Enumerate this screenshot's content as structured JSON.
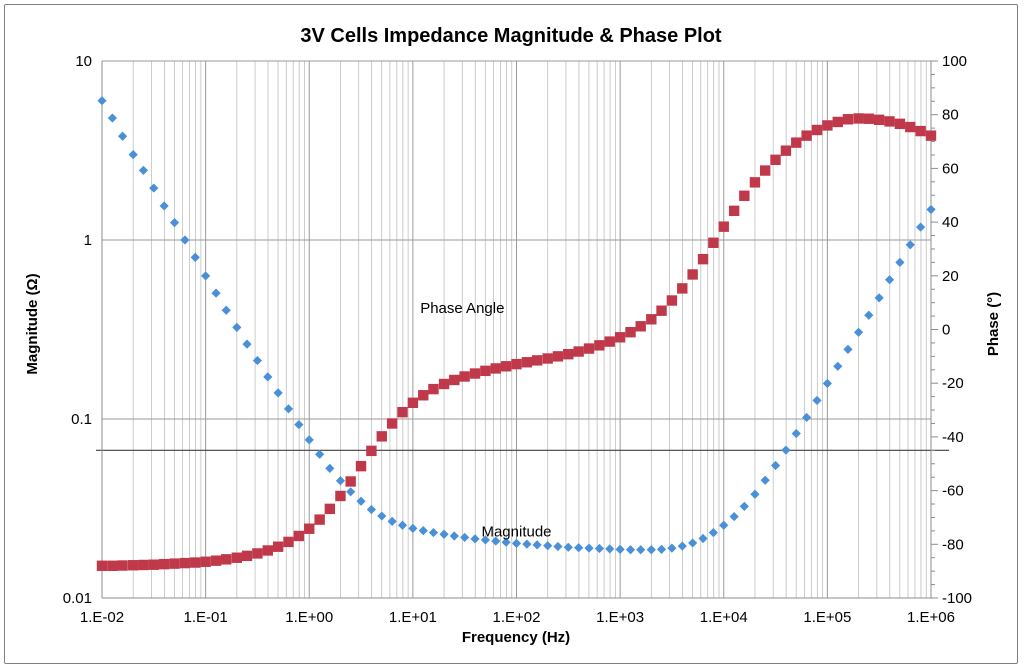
{
  "chart_data": {
    "type": "scatter",
    "title": "3V Cells Impedance Magnitude & Phase Plot",
    "xlabel": "Frequency (Hz)",
    "ylabel": "Magnitude (Ω)",
    "y2label": "Phase (°)",
    "x_scale": "log",
    "y_scale": "log",
    "xlim": [
      0.01,
      1000000
    ],
    "ylim": [
      0.01,
      10
    ],
    "y2lim": [
      -100,
      100
    ],
    "x_tick_labels": [
      "1.E-02",
      "1.E-01",
      "1.E+00",
      "1.E+01",
      "1.E+02",
      "1.E+03",
      "1.E+04",
      "1.E+05",
      "1.E+06"
    ],
    "y_tick_labels": [
      "0.01",
      "0.1",
      "1",
      "10"
    ],
    "y2_tick_labels": [
      "-100",
      "-80",
      "-60",
      "-40",
      "-20",
      "0",
      "20",
      "40",
      "60",
      "80",
      "100"
    ],
    "grid": true,
    "reference_line": {
      "axis": "y2",
      "value": -45
    },
    "annotations": [
      {
        "text": "Phase Angle",
        "series": "phase",
        "x": 30,
        "y2": 8
      },
      {
        "text": "Magnitude",
        "series": "magnitude",
        "x": 100,
        "y": 0.0235
      }
    ],
    "colors": {
      "magnitude": "#4a90d9",
      "phase": "#c0394b",
      "grid": "#bfbfbf",
      "axis": "#8c8c8c"
    },
    "series": [
      {
        "key": "magnitude",
        "axis": "y",
        "marker": "diamond",
        "points": [
          [
            0.01,
            6.0
          ],
          [
            0.0126,
            4.8
          ],
          [
            0.0158,
            3.8
          ],
          [
            0.02,
            3.0
          ],
          [
            0.0251,
            2.45
          ],
          [
            0.0316,
            1.95
          ],
          [
            0.0398,
            1.55
          ],
          [
            0.0501,
            1.25
          ],
          [
            0.0631,
            1.0
          ],
          [
            0.0794,
            0.8
          ],
          [
            0.1,
            0.63
          ],
          [
            0.126,
            0.505
          ],
          [
            0.158,
            0.405
          ],
          [
            0.2,
            0.325
          ],
          [
            0.251,
            0.262
          ],
          [
            0.316,
            0.212
          ],
          [
            0.398,
            0.172
          ],
          [
            0.501,
            0.14
          ],
          [
            0.631,
            0.114
          ],
          [
            0.794,
            0.093
          ],
          [
            1.0,
            0.0765
          ],
          [
            1.26,
            0.0635
          ],
          [
            1.58,
            0.053
          ],
          [
            2.0,
            0.0452
          ],
          [
            2.51,
            0.0392
          ],
          [
            3.16,
            0.0347
          ],
          [
            3.98,
            0.0312
          ],
          [
            5.01,
            0.0287
          ],
          [
            6.31,
            0.0268
          ],
          [
            7.94,
            0.0255
          ],
          [
            10,
            0.0245
          ],
          [
            12.6,
            0.0238
          ],
          [
            15.8,
            0.0232
          ],
          [
            20,
            0.0227
          ],
          [
            25.1,
            0.0222
          ],
          [
            31.6,
            0.0218
          ],
          [
            39.8,
            0.0214
          ],
          [
            50.1,
            0.0211
          ],
          [
            63.1,
            0.0208
          ],
          [
            79.4,
            0.0205
          ],
          [
            100,
            0.0202
          ],
          [
            126,
            0.02
          ],
          [
            158,
            0.0198
          ],
          [
            200,
            0.0196
          ],
          [
            251,
            0.0194
          ],
          [
            316,
            0.0192
          ],
          [
            398,
            0.0191
          ],
          [
            501,
            0.019
          ],
          [
            631,
            0.0189
          ],
          [
            794,
            0.0188
          ],
          [
            1000,
            0.0187
          ],
          [
            1260,
            0.0186
          ],
          [
            1580,
            0.0186
          ],
          [
            2000,
            0.0186
          ],
          [
            2510,
            0.0187
          ],
          [
            3160,
            0.019
          ],
          [
            3980,
            0.0195
          ],
          [
            5010,
            0.0203
          ],
          [
            6310,
            0.0215
          ],
          [
            7940,
            0.0232
          ],
          [
            10000,
            0.0255
          ],
          [
            12600,
            0.0285
          ],
          [
            15800,
            0.0325
          ],
          [
            20000,
            0.038
          ],
          [
            25100,
            0.0455
          ],
          [
            31600,
            0.055
          ],
          [
            39800,
            0.067
          ],
          [
            50100,
            0.083
          ],
          [
            63100,
            0.102
          ],
          [
            79400,
            0.127
          ],
          [
            100000,
            0.158
          ],
          [
            126000,
            0.197
          ],
          [
            158000,
            0.245
          ],
          [
            200000,
            0.305
          ],
          [
            251000,
            0.38
          ],
          [
            316000,
            0.475
          ],
          [
            398000,
            0.6
          ],
          [
            501000,
            0.75
          ],
          [
            631000,
            0.94
          ],
          [
            794000,
            1.18
          ],
          [
            1000000,
            1.48
          ]
        ]
      },
      {
        "key": "phase",
        "axis": "y2",
        "marker": "square",
        "points": [
          [
            0.01,
            -88
          ],
          [
            0.0126,
            -88
          ],
          [
            0.0158,
            -87.9
          ],
          [
            0.02,
            -87.8
          ],
          [
            0.0251,
            -87.7
          ],
          [
            0.0316,
            -87.6
          ],
          [
            0.0398,
            -87.4
          ],
          [
            0.0501,
            -87.2
          ],
          [
            0.0631,
            -87.0
          ],
          [
            0.0794,
            -86.8
          ],
          [
            0.1,
            -86.5
          ],
          [
            0.126,
            -86.1
          ],
          [
            0.158,
            -85.6
          ],
          [
            0.2,
            -85.0
          ],
          [
            0.251,
            -84.3
          ],
          [
            0.316,
            -83.4
          ],
          [
            0.398,
            -82.3
          ],
          [
            0.501,
            -80.9
          ],
          [
            0.631,
            -79.1
          ],
          [
            0.794,
            -76.9
          ],
          [
            1.0,
            -74.2
          ],
          [
            1.26,
            -70.8
          ],
          [
            1.58,
            -66.8
          ],
          [
            2.0,
            -62.0
          ],
          [
            2.51,
            -56.6
          ],
          [
            3.16,
            -50.9
          ],
          [
            3.98,
            -45.2
          ],
          [
            5.01,
            -39.8
          ],
          [
            6.31,
            -35.0
          ],
          [
            7.94,
            -30.8
          ],
          [
            10,
            -27.3
          ],
          [
            12.6,
            -24.5
          ],
          [
            15.8,
            -22.2
          ],
          [
            20,
            -20.3
          ],
          [
            25.1,
            -18.8
          ],
          [
            31.6,
            -17.5
          ],
          [
            39.8,
            -16.4
          ],
          [
            50.1,
            -15.4
          ],
          [
            63.1,
            -14.5
          ],
          [
            79.4,
            -13.7
          ],
          [
            100,
            -12.9
          ],
          [
            126,
            -12.2
          ],
          [
            158,
            -11.5
          ],
          [
            200,
            -10.8
          ],
          [
            251,
            -10.0
          ],
          [
            316,
            -9.2
          ],
          [
            398,
            -8.2
          ],
          [
            501,
            -7.1
          ],
          [
            631,
            -5.9
          ],
          [
            794,
            -4.5
          ],
          [
            1000,
            -2.9
          ],
          [
            1260,
            -1.0
          ],
          [
            1580,
            1.2
          ],
          [
            2000,
            3.8
          ],
          [
            2510,
            7.0
          ],
          [
            3160,
            10.8
          ],
          [
            3980,
            15.3
          ],
          [
            5010,
            20.5
          ],
          [
            6310,
            26.2
          ],
          [
            7940,
            32.3
          ],
          [
            10000,
            38.3
          ],
          [
            12600,
            44.2
          ],
          [
            15800,
            49.8
          ],
          [
            20000,
            54.8
          ],
          [
            25100,
            59.2
          ],
          [
            31600,
            63.2
          ],
          [
            39800,
            66.6
          ],
          [
            50100,
            69.6
          ],
          [
            63100,
            72.2
          ],
          [
            79400,
            74.3
          ],
          [
            100000,
            76.0
          ],
          [
            126000,
            77.3
          ],
          [
            158000,
            78.3
          ],
          [
            200000,
            78.6
          ],
          [
            251000,
            78.5
          ],
          [
            316000,
            78.1
          ],
          [
            398000,
            77.5
          ],
          [
            501000,
            76.6
          ],
          [
            631000,
            75.4
          ],
          [
            794000,
            73.9
          ],
          [
            1000000,
            72.2
          ]
        ]
      }
    ]
  }
}
